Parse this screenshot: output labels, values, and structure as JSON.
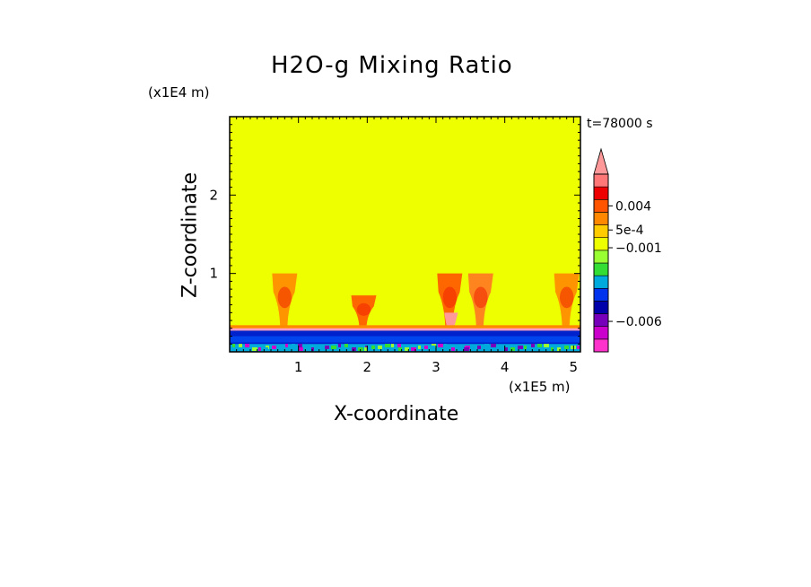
{
  "chart_data": {
    "type": "heatmap",
    "title": "H2O-g Mixing Ratio",
    "xlabel": "X-coordinate",
    "ylabel": "Z-coordinate",
    "x_multiplier": "(x1E5 m)",
    "z_multiplier": "(x1E4 m)",
    "time_label": "t=78000 s",
    "x_ticks": [
      {
        "value": 1,
        "label": "1"
      },
      {
        "value": 2,
        "label": "2"
      },
      {
        "value": 3,
        "label": "3"
      },
      {
        "value": 4,
        "label": "4"
      },
      {
        "value": 5,
        "label": "5"
      }
    ],
    "z_ticks": [
      {
        "value": 1,
        "label": "1"
      },
      {
        "value": 2,
        "label": "2"
      }
    ],
    "xlim": [
      0,
      5.1
    ],
    "zlim": [
      0,
      3
    ],
    "background_fill": "#eeff00",
    "colorbar": {
      "bands": [
        "#ff33cc",
        "#cc00cc",
        "#7700bb",
        "#0000aa",
        "#0033ee",
        "#00aadd",
        "#33dd33",
        "#99ff33",
        "#eeff00",
        "#ffcc00",
        "#ff8800",
        "#ff5500",
        "#ee0000",
        "#ff7777"
      ],
      "labels": [
        {
          "text": "0.004",
          "band": 11.5
        },
        {
          "text": "5e-4",
          "band": 9.6
        },
        {
          "text": "−0.001",
          "band": 8.2
        },
        {
          "text": "−0.006",
          "band": 2.4
        }
      ],
      "extend_top": true
    },
    "plumes": [
      {
        "x": 0.8,
        "z_top": 1.0,
        "color": "#ff8800"
      },
      {
        "x": 1.95,
        "z_top": 0.72,
        "color": "#ff5500"
      },
      {
        "x": 3.2,
        "z_top": 1.0,
        "color": "#ff5500"
      },
      {
        "x": 3.65,
        "z_top": 1.0,
        "color": "#ff7722"
      },
      {
        "x": 4.9,
        "z_top": 1.0,
        "color": "#ff8800"
      }
    ]
  }
}
